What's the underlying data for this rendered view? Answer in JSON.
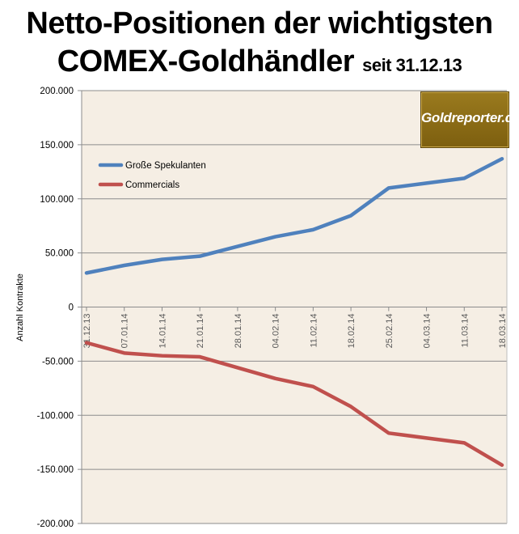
{
  "title": {
    "line1": "Netto-Positionen der wichtigsten",
    "line2_main": "COMEX-Goldhändler",
    "line2_sub": "seit 31.12.13"
  },
  "logo": {
    "text": "Goldreporter.de"
  },
  "chart_data": {
    "type": "line",
    "title": "Netto-Positionen der wichtigsten COMEX-Goldhändler seit 31.12.13",
    "xlabel": "",
    "ylabel": "Anzahl Kontrakte",
    "ylim": [
      -200000,
      200000
    ],
    "yticks": [
      -200000,
      -150000,
      -100000,
      -50000,
      0,
      50000,
      100000,
      150000,
      200000
    ],
    "ytick_labels": [
      "-200.000",
      "-150.000",
      "-100.000",
      "-50.000",
      "0",
      "50.000",
      "100.000",
      "150.000",
      "200.000"
    ],
    "categories": [
      "31.12.13",
      "07.01.14",
      "14.01.14",
      "21.01.14",
      "28.01.14",
      "04.02.14",
      "11.02.14",
      "18.02.14",
      "25.02.14",
      "04.03.14",
      "11.03.14",
      "18.03.14"
    ],
    "series": [
      {
        "name": "Große Spekulanten",
        "color": "#4f81bd",
        "values": [
          31500,
          38500,
          44000,
          47000,
          56000,
          65000,
          71500,
          84500,
          110000,
          114500,
          119000,
          137000
        ]
      },
      {
        "name": "Commercials",
        "color": "#c0504d",
        "values": [
          -33000,
          -42500,
          -45000,
          -46000,
          -56000,
          -66000,
          -73500,
          -92000,
          -116500,
          -121000,
          -125500,
          -146000
        ]
      }
    ],
    "legend_position": "top-left",
    "grid": true,
    "plot_background": "#f5eee4"
  }
}
